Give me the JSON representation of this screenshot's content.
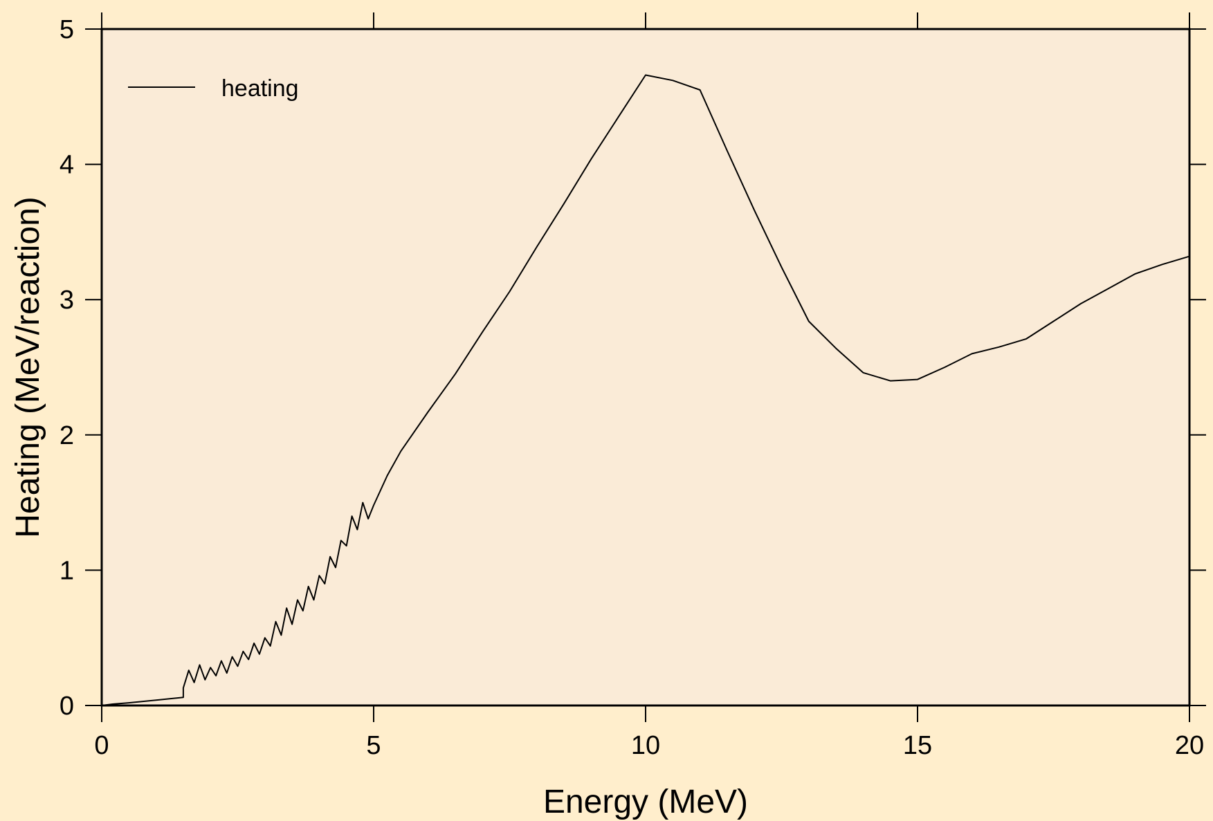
{
  "chart_data": {
    "type": "line",
    "title": "",
    "xlabel": "Energy (MeV)",
    "ylabel": "Heating (MeV/reaction)",
    "xlim": [
      0,
      20
    ],
    "ylim": [
      0,
      5
    ],
    "xticks": [
      0,
      5,
      10,
      15,
      20
    ],
    "yticks": [
      0,
      1,
      2,
      3,
      4,
      5
    ],
    "xtick_labels": [
      "0",
      "5",
      "10",
      "15",
      "20"
    ],
    "ytick_labels": [
      "0",
      "1",
      "2",
      "3",
      "4",
      "5"
    ],
    "grid": false,
    "legend": {
      "position": "top-left",
      "entries": [
        "heating"
      ]
    },
    "colors": {
      "background": "#ffeecc",
      "plot_area": "#faebd7",
      "line": "#000000"
    },
    "series": [
      {
        "name": "heating",
        "x": [
          0.0,
          0.2,
          0.5,
          1.0,
          1.5,
          1.5,
          1.6,
          1.7,
          1.8,
          1.9,
          2.0,
          2.1,
          2.2,
          2.3,
          2.4,
          2.5,
          2.6,
          2.7,
          2.8,
          2.9,
          3.0,
          3.1,
          3.2,
          3.3,
          3.4,
          3.5,
          3.6,
          3.7,
          3.8,
          3.9,
          4.0,
          4.1,
          4.2,
          4.3,
          4.4,
          4.5,
          4.6,
          4.7,
          4.8,
          4.9,
          5.0,
          5.25,
          5.5,
          6.0,
          6.5,
          7.0,
          7.5,
          8.0,
          8.5,
          9.0,
          9.5,
          10.0,
          10.5,
          11.0,
          11.5,
          12.0,
          12.5,
          13.0,
          13.5,
          14.0,
          14.5,
          15.0,
          15.5,
          16.0,
          16.5,
          17.0,
          17.5,
          18.0,
          18.5,
          19.0,
          19.5,
          20.0
        ],
        "y": [
          0.0,
          0.01,
          0.02,
          0.04,
          0.06,
          0.13,
          0.26,
          0.17,
          0.3,
          0.19,
          0.28,
          0.22,
          0.33,
          0.24,
          0.36,
          0.29,
          0.4,
          0.34,
          0.46,
          0.38,
          0.5,
          0.44,
          0.62,
          0.52,
          0.72,
          0.6,
          0.78,
          0.7,
          0.88,
          0.78,
          0.96,
          0.9,
          1.1,
          1.02,
          1.22,
          1.18,
          1.4,
          1.3,
          1.5,
          1.38,
          1.48,
          1.7,
          1.88,
          2.17,
          2.45,
          2.76,
          3.06,
          3.39,
          3.71,
          4.04,
          4.35,
          4.66,
          4.62,
          4.55,
          4.1,
          3.66,
          3.24,
          2.84,
          2.64,
          2.46,
          2.4,
          2.41,
          2.5,
          2.6,
          2.65,
          2.71,
          2.84,
          2.97,
          3.08,
          3.19,
          3.26,
          3.32
        ]
      }
    ]
  }
}
